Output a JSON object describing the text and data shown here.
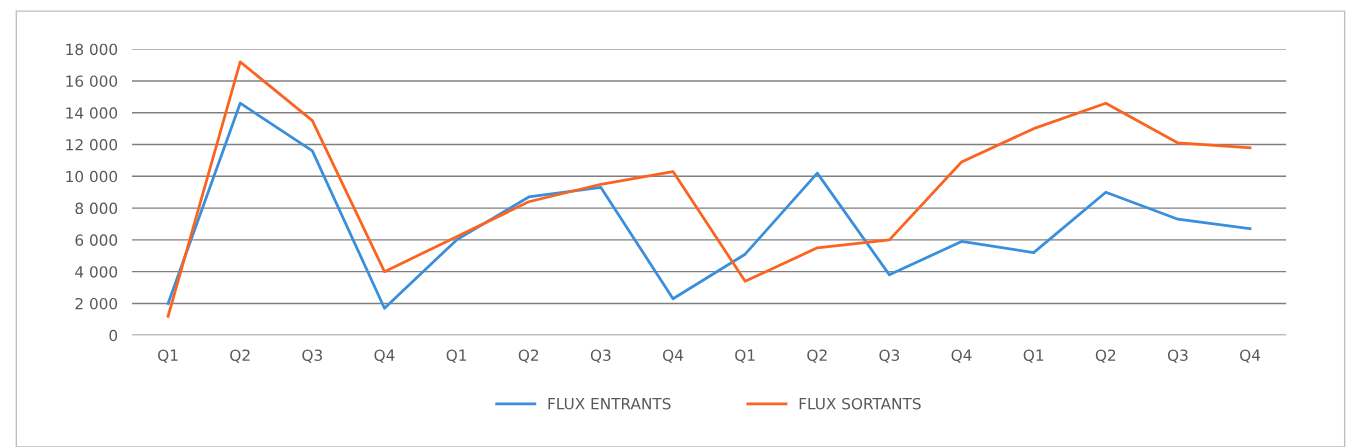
{
  "chart_data": {
    "type": "line",
    "categories": [
      "Q1",
      "Q2",
      "Q3",
      "Q4",
      "Q1",
      "Q2",
      "Q3",
      "Q4",
      "Q1",
      "Q2",
      "Q3",
      "Q4",
      "Q1",
      "Q2",
      "Q3",
      "Q4"
    ],
    "series": [
      {
        "name": "FLUX ENTRANTS",
        "color": "#3a8fdc",
        "values": [
          2000,
          14600,
          11600,
          1700,
          6000,
          8700,
          9300,
          2300,
          5100,
          10200,
          3800,
          5900,
          5200,
          9000,
          7300,
          6700
        ]
      },
      {
        "name": "FLUX SORTANTS",
        "color": "#fb6420",
        "values": [
          1200,
          17200,
          13500,
          4000,
          6200,
          8400,
          9500,
          10300,
          3400,
          5500,
          6000,
          10900,
          13000,
          14600,
          12100,
          11800
        ]
      }
    ],
    "ylim": [
      0,
      18000
    ],
    "yticks": [
      {
        "value": 0,
        "label": "0"
      },
      {
        "value": 2000,
        "label": "2 000"
      },
      {
        "value": 4000,
        "label": "4 000"
      },
      {
        "value": 6000,
        "label": "6 000"
      },
      {
        "value": 8000,
        "label": "8 000"
      },
      {
        "value": 10000,
        "label": "10 000"
      },
      {
        "value": 12000,
        "label": "12 000"
      },
      {
        "value": 14000,
        "label": "14 000"
      },
      {
        "value": 16000,
        "label": "16 000"
      },
      {
        "value": 18000,
        "label": "18 000"
      }
    ],
    "grid": "y",
    "legend": "bottom",
    "marker": "none",
    "line_style": "solid"
  }
}
